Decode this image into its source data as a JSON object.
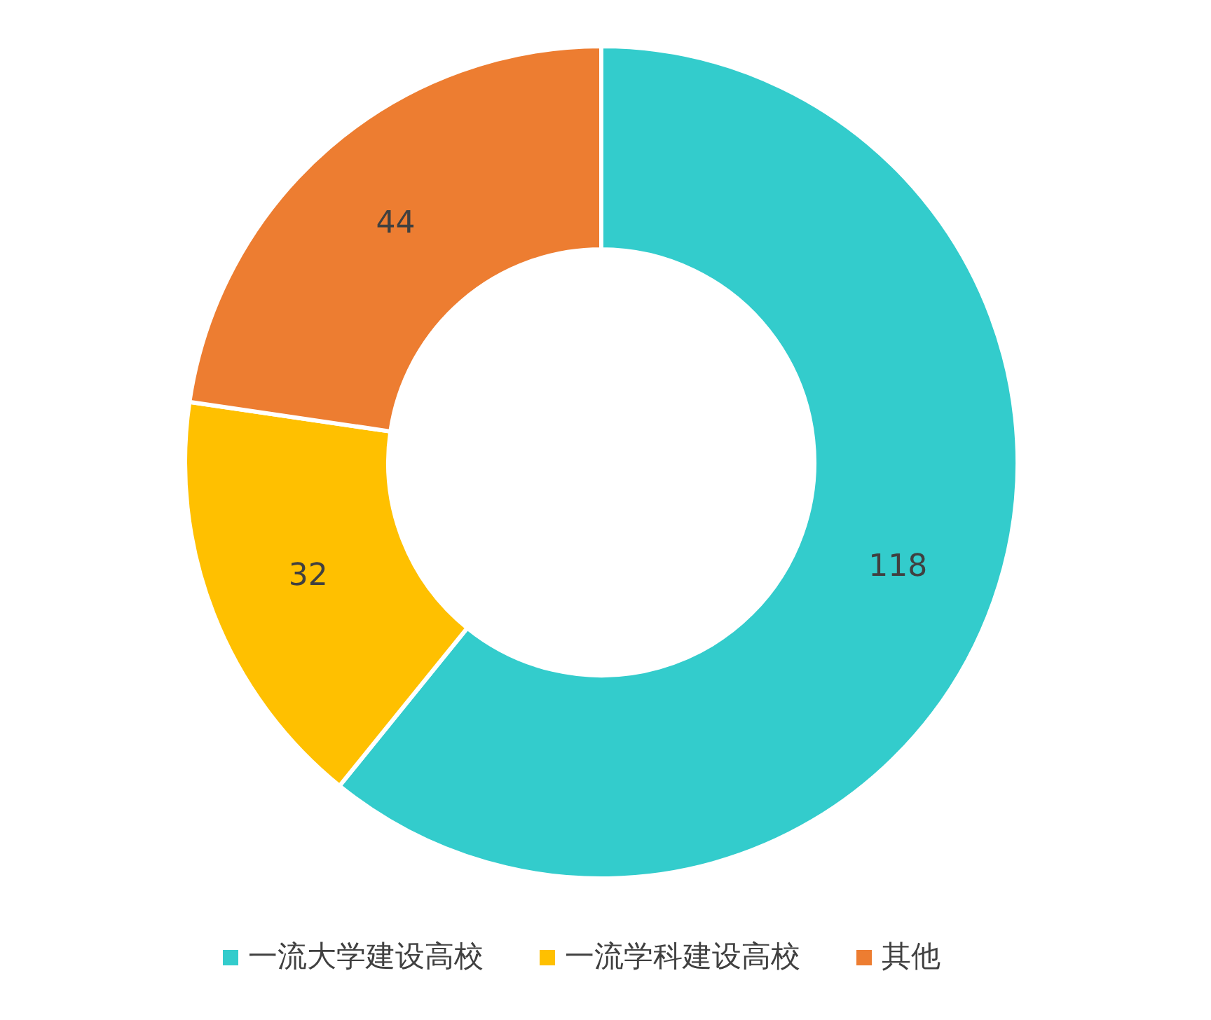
{
  "chart_data": {
    "type": "donut",
    "categories": [
      "一流大学建设高校",
      "一流学科建设高校",
      "其他"
    ],
    "values": [
      118,
      32,
      44
    ],
    "colors": [
      "#33cccc",
      "#ffc000",
      "#ed7d31"
    ],
    "data_labels": true,
    "legend": "bottom"
  }
}
